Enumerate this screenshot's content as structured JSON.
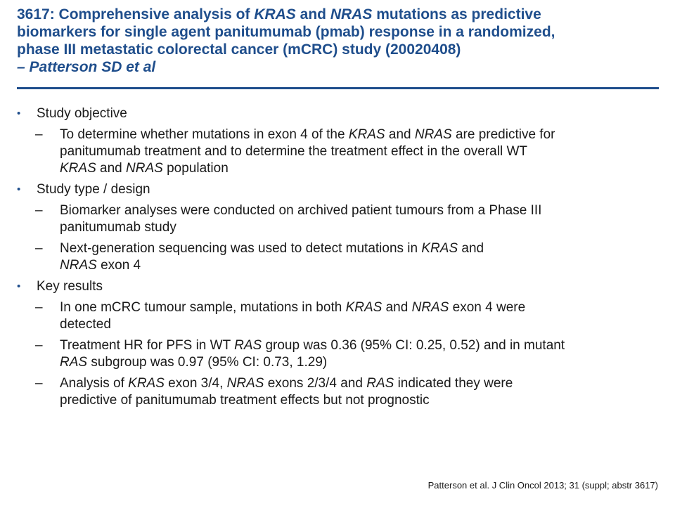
{
  "title": {
    "lines": [
      "3617: Comprehensive analysis of KRAS and NRAS mutations as predictive",
      "biomarkers for single agent panitumumab (pmab) response in a randomized,",
      "phase III metastatic colorectal cancer (mCRC) study (20020408)",
      "– Patterson SD et al"
    ]
  },
  "sections": [
    {
      "heading": "Study objective",
      "items": [
        {
          "lines": [
            "To determine whether mutations in exon 4 of the KRAS and NRAS are predictive for",
            "panitumumab treatment and to determine the treatment effect in the overall WT",
            "KRAS and NRAS population"
          ]
        }
      ]
    },
    {
      "heading": "Study type / design",
      "items": [
        {
          "lines": [
            "Biomarker analyses were conducted on archived patient tumours from a Phase III",
            "panitumumab study"
          ]
        },
        {
          "lines": [
            "Next-generation sequencing was used to detect mutations in KRAS and",
            "NRAS exon 4"
          ]
        }
      ]
    },
    {
      "heading": "Key results",
      "items": [
        {
          "lines": [
            "In one mCRC tumour sample, mutations in both KRAS and NRAS exon 4 were",
            "detected"
          ]
        },
        {
          "lines": [
            "Treatment HR for PFS in WT RAS group was 0.36 (95% CI: 0.25, 0.52) and in mutant",
            "RAS subgroup was 0.97 (95% CI: 0.73, 1.29)"
          ]
        },
        {
          "lines": [
            "Analysis of KRAS exon 3/4, NRAS exons 2/3/4 and RAS indicated they were",
            "predictive of panitumumab treatment effects but not prognostic"
          ]
        }
      ]
    }
  ],
  "footnote": "Patterson et al. J Clin Oncol 2013; 31 (suppl; abstr 3617)",
  "colors": {
    "accent": "#1f4e8c",
    "text": "#1a1a1a"
  },
  "icons": {
    "bullet": "bullet-dot-icon",
    "dash": "dash-icon"
  }
}
